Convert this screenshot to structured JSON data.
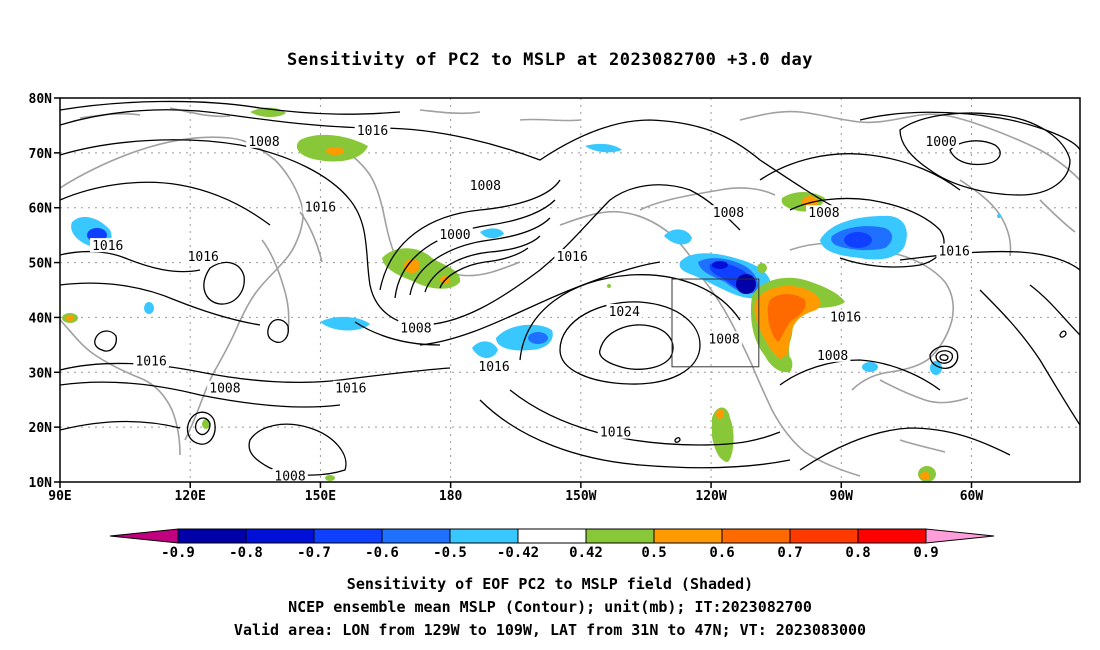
{
  "title": "Sensitivity of PC2 to MSLP at 2023082700 +3.0 day",
  "lat_ticks": [
    "80N",
    "70N",
    "60N",
    "50N",
    "40N",
    "30N",
    "20N",
    "10N"
  ],
  "lon_ticks": [
    "90E",
    "120E",
    "150E",
    "180",
    "150W",
    "120W",
    "90W",
    "60W"
  ],
  "contour_labels": [
    {
      "text": "1008",
      "lon": 137,
      "lat": 72
    },
    {
      "text": "1016",
      "lon": 162,
      "lat": 74
    },
    {
      "text": "1000",
      "lon": -67,
      "lat": 72
    },
    {
      "text": "1008",
      "lon": -172,
      "lat": 64
    },
    {
      "text": "1016",
      "lon": 150,
      "lat": 60
    },
    {
      "text": "1008",
      "lon": -116,
      "lat": 59
    },
    {
      "text": "1008",
      "lon": -94,
      "lat": 59
    },
    {
      "text": "1000",
      "lon": -179,
      "lat": 55
    },
    {
      "text": "1016",
      "lon": 101,
      "lat": 53
    },
    {
      "text": "1016",
      "lon": -152,
      "lat": 51
    },
    {
      "text": "1016",
      "lon": -64,
      "lat": 52
    },
    {
      "text": "1016",
      "lon": 123,
      "lat": 51
    },
    {
      "text": "1024",
      "lon": -140,
      "lat": 41
    },
    {
      "text": "1016",
      "lon": -89,
      "lat": 40
    },
    {
      "text": "1008",
      "lon": 172,
      "lat": 38
    },
    {
      "text": "1008",
      "lon": -117,
      "lat": 36
    },
    {
      "text": "1016",
      "lon": 111,
      "lat": 32
    },
    {
      "text": "1016",
      "lon": -170,
      "lat": 31
    },
    {
      "text": "1016",
      "lon": 157,
      "lat": 27
    },
    {
      "text": "1008",
      "lon": -92,
      "lat": 33
    },
    {
      "text": "1008",
      "lon": 128,
      "lat": 27
    },
    {
      "text": "1016",
      "lon": -142,
      "lat": 19
    },
    {
      "text": "1008",
      "lon": 143,
      "lat": 11
    }
  ],
  "colorbar": {
    "labels": [
      "-0.9",
      "-0.8",
      "-0.7",
      "-0.6",
      "-0.5",
      "-0.42",
      "0.42",
      "0.5",
      "0.6",
      "0.7",
      "0.8",
      "0.9"
    ],
    "colors": [
      "#c0007f",
      "#0000a8",
      "#0010d8",
      "#1040ff",
      "#2070ff",
      "#38c8ff",
      "#ffffff",
      "#88c838",
      "#ff9a00",
      "#ff6a00",
      "#ff3a00",
      "#ff0000",
      "#ff9ed8"
    ]
  },
  "valid_box": {
    "lon_min": -129,
    "lon_max": -109,
    "lat_min": 31,
    "lat_max": 47
  },
  "captions": [
    "Sensitivity of EOF PC2 to MSLP field (Shaded)",
    "NCEP ensemble mean MSLP (Contour); unit(mb); IT:2023082700",
    "Valid area: LON from 129W to 109W, LAT from 31N to 47N; VT: 2023083000"
  ]
}
